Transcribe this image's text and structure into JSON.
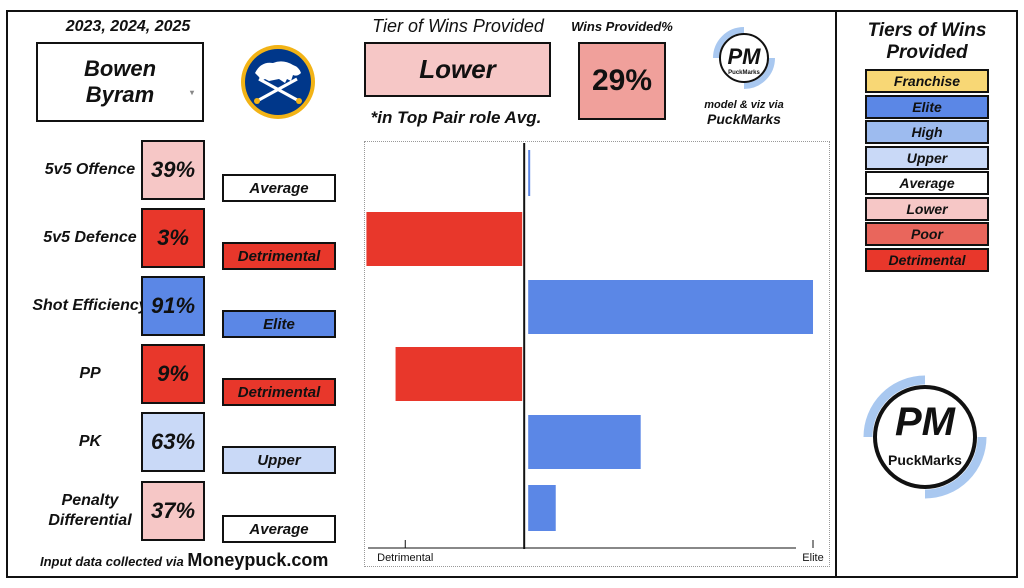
{
  "header": {
    "seasons": "2023, 2024, 2025",
    "player_name": "Bowen Byram",
    "tier_title": "Tier of Wins Provided",
    "tier_value": "Lower",
    "role_note": "*in Top Pair role Avg.",
    "wins_pct_title": "Wins Provided%",
    "wins_pct_value": "29%",
    "credit_line1": "model & viz via",
    "credit_line2": "PuckMarks"
  },
  "logo": {
    "mark": "PM",
    "brand": "PuckMarks"
  },
  "metrics": [
    {
      "label": "5v5 Offence",
      "pct": "39%",
      "tier": "Average",
      "color": "#f6c7c6",
      "tier_color": "#ffffff"
    },
    {
      "label": "5v5 Defence",
      "pct": "3%",
      "tier": "Detrimental",
      "color": "#e8372b",
      "tier_color": "#e8372b"
    },
    {
      "label": "Shot Efficiency",
      "pct": "91%",
      "tier": "Elite",
      "color": "#5b87e6",
      "tier_color": "#5b87e6"
    },
    {
      "label": "PP",
      "pct": "9%",
      "tier": "Detrimental",
      "color": "#e8372b",
      "tier_color": "#e8372b"
    },
    {
      "label": "PK",
      "pct": "63%",
      "tier": "Upper",
      "color": "#c9d9f7",
      "tier_color": "#c9d9f7"
    },
    {
      "label": "Penalty Differential",
      "pct": "37%",
      "tier": "Average",
      "color": "#f6c7c6",
      "tier_color": "#ffffff"
    }
  ],
  "footer": {
    "prefix": "Input data collected via ",
    "source": "Moneypuck.com"
  },
  "legend": {
    "title": "Tiers of Wins Provided",
    "items": [
      {
        "label": "Franchise",
        "color": "#f8d775"
      },
      {
        "label": "Elite",
        "color": "#5b87e6"
      },
      {
        "label": "High",
        "color": "#9dbbef"
      },
      {
        "label": "Upper",
        "color": "#c9d9f7"
      },
      {
        "label": "Average",
        "color": "#ffffff"
      },
      {
        "label": "Lower",
        "color": "#f6c7c6"
      },
      {
        "label": "Poor",
        "color": "#e9665c"
      },
      {
        "label": "Detrimental",
        "color": "#e8372b"
      }
    ]
  },
  "chart_data": {
    "type": "bar",
    "orientation": "horizontal",
    "categories": [
      "5v5 Offence",
      "5v5 Defence",
      "Shot Efficiency",
      "PP",
      "PK",
      "Penalty Differential"
    ],
    "values": [
      0.2,
      -6.5,
      11.9,
      -5.3,
      4.8,
      1.3
    ],
    "colors": [
      "#5b87e6",
      "#e8372b",
      "#5b87e6",
      "#e8372b",
      "#5b87e6",
      "#5b87e6"
    ],
    "xlim": [
      -6.6,
      12.6
    ],
    "zero": 0,
    "ticks": [
      {
        "value": -4.9,
        "label": "Detrimental"
      },
      {
        "value": 11.9,
        "label": "Elite"
      }
    ],
    "xlabel": "",
    "ylabel": "",
    "title": ""
  }
}
